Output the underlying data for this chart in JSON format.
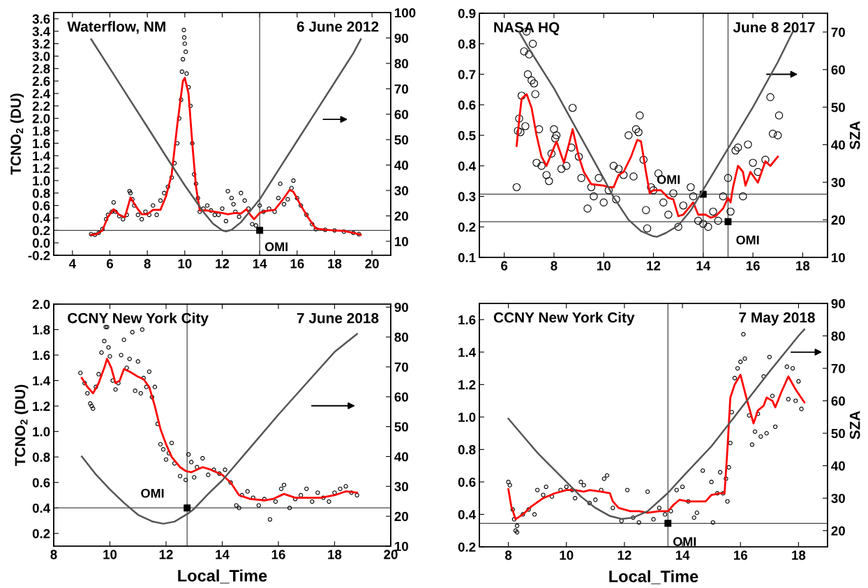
{
  "chart_data": [
    {
      "type": "scatter",
      "title": "Waterflow, NM",
      "subtitle": "6 June 2012",
      "ylabel": "TCNO$_{2}$ (DU)",
      "xlim": [
        3,
        21
      ],
      "xticks": [
        4,
        6,
        8,
        10,
        12,
        14,
        16,
        18,
        20
      ],
      "ylim": [
        -0.2,
        3.7
      ],
      "yticks": [
        -0.2,
        {
          "value": 0,
          "label": "0.0"
        },
        0.2,
        0.4,
        0.6,
        0.8,
        {
          "value": 1,
          "label": "1.0"
        },
        1.2,
        1.4,
        1.6,
        1.8,
        {
          "value": 2,
          "label": "2.0"
        },
        2.2,
        2.4,
        2.6,
        2.8,
        {
          "value": 3,
          "label": "3.0"
        },
        3.2,
        3.4,
        3.6
      ],
      "y2lim": [
        4.5,
        100
      ],
      "y2ticks": [
        10,
        20,
        30,
        40,
        50,
        60,
        70,
        80,
        90,
        100
      ],
      "series": [
        {
          "marker": "circle",
          "color": "#000000",
          "x": [
            5.0,
            5.2,
            5.4,
            5.6,
            5.8,
            5.9,
            6.1,
            6.2,
            6.3,
            6.5,
            6.7,
            6.9,
            7.05,
            7.1,
            7.2,
            7.3,
            7.5,
            7.7,
            7.9,
            8.1,
            8.3,
            8.5,
            8.7,
            8.9,
            9.1,
            9.3,
            9.45,
            9.6,
            9.7,
            9.8,
            9.85,
            9.9,
            9.95,
            9.97,
            10.0,
            10.05,
            10.1,
            10.2,
            10.3,
            10.4,
            10.5,
            10.6,
            10.7,
            10.8,
            11.0,
            11.2,
            11.4,
            11.6,
            11.8,
            12.0,
            12.2,
            12.3,
            12.5,
            12.6,
            12.7,
            12.9,
            13.0,
            13.2,
            13.4,
            13.6,
            13.8,
            14.0,
            14.2,
            14.5,
            14.8,
            15.0,
            15.1,
            15.3,
            15.5,
            15.7,
            15.8,
            16.0,
            16.2,
            16.5,
            16.8,
            17.0,
            17.5,
            18.0,
            18.5,
            19.0,
            19.3
          ],
          "values": [
            0.14,
            0.13,
            0.16,
            0.22,
            0.38,
            0.45,
            0.5,
            0.65,
            0.5,
            0.43,
            0.38,
            0.45,
            0.83,
            0.8,
            0.7,
            0.6,
            0.45,
            0.38,
            0.5,
            0.45,
            0.6,
            0.45,
            0.68,
            0.8,
            0.9,
            1.05,
            1.28,
            1.6,
            2.0,
            2.3,
            2.75,
            2.95,
            3.42,
            3.3,
            3.2,
            3.07,
            2.72,
            2.5,
            2.2,
            1.6,
            1.1,
            0.95,
            0.72,
            0.5,
            0.55,
            0.6,
            0.52,
            0.45,
            0.45,
            0.55,
            0.35,
            0.83,
            0.72,
            0.62,
            0.5,
            0.42,
            0.8,
            0.68,
            0.55,
            0.3,
            0.28,
            0.6,
            0.5,
            0.55,
            0.5,
            0.72,
            0.95,
            0.62,
            0.7,
            0.88,
            1.0,
            0.72,
            0.6,
            0.45,
            0.3,
            0.22,
            0.21,
            0.2,
            0.18,
            0.16,
            0.14
          ]
        },
        {
          "type": "line",
          "color": "#ff0000",
          "x": [
            5,
            5.3,
            5.6,
            5.9,
            6.2,
            6.5,
            6.8,
            7.1,
            7.4,
            7.7,
            8,
            8.3,
            8.7,
            9,
            9.3,
            9.6,
            9.9,
            10.0,
            10.2,
            10.4,
            10.6,
            10.8,
            11.2,
            11.6,
            12,
            12.3,
            12.7,
            13,
            13.3,
            13.5,
            13.7,
            14,
            14.3,
            14.8,
            15.2,
            15.6,
            15.8,
            16.2,
            16.6,
            17,
            17.5,
            18,
            18.5,
            19,
            19.4
          ],
          "values": [
            0.13,
            0.14,
            0.2,
            0.42,
            0.54,
            0.45,
            0.41,
            0.73,
            0.58,
            0.46,
            0.46,
            0.53,
            0.53,
            0.75,
            1.1,
            1.9,
            2.6,
            2.65,
            2.4,
            1.6,
            0.9,
            0.52,
            0.52,
            0.5,
            0.48,
            0.46,
            0.48,
            0.47,
            0.54,
            0.45,
            0.38,
            0.48,
            0.51,
            0.53,
            0.68,
            0.85,
            0.82,
            0.6,
            0.4,
            0.23,
            0.21,
            0.2,
            0.19,
            0.16,
            0.13
          ]
        },
        {
          "type": "line",
          "axis": "y2",
          "color": "#555555",
          "x": [
            5,
            6,
            7,
            8,
            9,
            10,
            11,
            11.5,
            12,
            12.2,
            12.5,
            13,
            13.5,
            14,
            15,
            16,
            17,
            18,
            19,
            19.4
          ],
          "values": [
            89.5,
            78,
            66.5,
            55,
            43.4,
            32,
            21.5,
            17,
            14.3,
            13.9,
            14.5,
            17.5,
            22,
            26.5,
            38,
            49.5,
            61,
            72.5,
            84,
            89.5
          ]
        },
        {
          "marker": "square",
          "color": "#000000",
          "x": [
            14
          ],
          "values": [
            0.2
          ]
        }
      ],
      "ref_lines": [
        {
          "axis": "y",
          "value": 0.2,
          "color": "#444444"
        },
        {
          "axis": "x",
          "value": 14,
          "color": "#444444"
        }
      ],
      "annotations": [
        {
          "text": "OMI",
          "x": 14,
          "y": 0.2
        }
      ]
    },
    {
      "type": "scatter",
      "title": "NASA HQ",
      "subtitle": "June 8 2017",
      "y2label": "SZA",
      "xlim": [
        5,
        19
      ],
      "xticks": [
        6,
        8,
        10,
        12,
        14,
        16,
        18
      ],
      "ylim": [
        0.1,
        0.9
      ],
      "yticks": [
        0.1,
        0.2,
        0.3,
        0.4,
        0.5,
        0.6,
        0.7,
        0.8,
        0.9
      ],
      "y2lim": [
        10,
        75
      ],
      "y2ticks": [
        10,
        20,
        30,
        40,
        50,
        60,
        70
      ],
      "series": [
        {
          "marker": "circle",
          "color": "#000000",
          "x": [
            6.5,
            6.55,
            6.6,
            6.65,
            6.7,
            6.8,
            6.85,
            6.9,
            6.95,
            7.0,
            7.1,
            7.15,
            7.2,
            7.25,
            7.3,
            7.4,
            7.5,
            7.7,
            7.8,
            7.9,
            8.0,
            8.05,
            8.1,
            8.3,
            8.5,
            8.7,
            8.75,
            9.0,
            9.1,
            9.35,
            9.5,
            9.6,
            9.8,
            10.0,
            10.2,
            10.4,
            10.5,
            10.6,
            10.8,
            11.0,
            11.2,
            11.3,
            11.4,
            11.45,
            11.6,
            11.7,
            11.75,
            11.9,
            12.0,
            12.2,
            12.4,
            12.6,
            12.8,
            13.0,
            13.2,
            13.5,
            13.6,
            13.8,
            14.0,
            14.2,
            14.4,
            14.6,
            14.8,
            15.0,
            15.1,
            15.3,
            15.4,
            15.6,
            15.8,
            16.0,
            16.2,
            16.5,
            16.7,
            16.8,
            17.0,
            17.05
          ],
          "values": [
            0.33,
            0.515,
            0.555,
            0.51,
            0.63,
            0.775,
            0.53,
            0.84,
            0.7,
            0.765,
            0.68,
            0.8,
            0.67,
            0.635,
            0.41,
            0.52,
            0.4,
            0.37,
            0.35,
            0.44,
            0.52,
            0.49,
            0.5,
            0.39,
            0.4,
            0.46,
            0.59,
            0.43,
            0.36,
            0.26,
            0.33,
            0.3,
            0.36,
            0.28,
            0.32,
            0.4,
            0.29,
            0.39,
            0.37,
            0.5,
            0.365,
            0.52,
            0.51,
            0.565,
            0.42,
            0.255,
            0.195,
            0.33,
            0.32,
            0.375,
            0.28,
            0.24,
            0.31,
            0.2,
            0.27,
            0.33,
            0.3,
            0.22,
            0.21,
            0.2,
            0.25,
            0.22,
            0.3,
            0.36,
            0.25,
            0.45,
            0.46,
            0.3,
            0.47,
            0.41,
            0.38,
            0.42,
            0.625,
            0.505,
            0.5,
            0.565
          ]
        },
        {
          "type": "line",
          "color": "#ff0000",
          "x": [
            6.5,
            6.6,
            6.7,
            6.9,
            7.1,
            7.3,
            7.5,
            7.7,
            7.9,
            8.1,
            8.4,
            8.6,
            8.75,
            9,
            9.2,
            9.5,
            10,
            10.2,
            10.4,
            10.6,
            10.8,
            11.1,
            11.35,
            11.5,
            11.7,
            11.85,
            12,
            12.3,
            12.6,
            12.8,
            13,
            13.2,
            13.5,
            13.6,
            13.8,
            14.1,
            14.3,
            14.5,
            14.8,
            15,
            15.1,
            15.2,
            15.4,
            15.6,
            15.7,
            15.9,
            16.2,
            16.5,
            16.7,
            17
          ],
          "values": [
            0.465,
            0.55,
            0.62,
            0.635,
            0.59,
            0.5,
            0.43,
            0.4,
            0.44,
            0.48,
            0.41,
            0.47,
            0.52,
            0.43,
            0.38,
            0.34,
            0.335,
            0.33,
            0.33,
            0.37,
            0.38,
            0.43,
            0.485,
            0.48,
            0.38,
            0.31,
            0.32,
            0.32,
            0.295,
            0.29,
            0.235,
            0.24,
            0.27,
            0.28,
            0.24,
            0.24,
            0.23,
            0.235,
            0.26,
            0.295,
            0.28,
            0.33,
            0.4,
            0.38,
            0.335,
            0.38,
            0.345,
            0.415,
            0.4,
            0.43
          ]
        },
        {
          "type": "line",
          "axis": "y2",
          "color": "#555555",
          "x": [
            6.6,
            7,
            8,
            9,
            10,
            10.4,
            11,
            11.5,
            12,
            12.15,
            12.5,
            13,
            13.5,
            14,
            15,
            16,
            17,
            17.6
          ],
          "values": [
            70,
            65.5,
            55,
            43,
            31,
            26,
            20,
            17,
            15.6,
            15.5,
            16.5,
            18.5,
            22.5,
            28,
            39,
            50,
            62,
            70
          ]
        },
        {
          "marker": "square",
          "color": "#000000",
          "x": [
            14,
            15
          ],
          "values": [
            0.307,
            0.217
          ]
        }
      ],
      "ref_lines": [
        {
          "axis": "y",
          "value": 0.307,
          "color": "#444444"
        },
        {
          "axis": "y",
          "value": 0.217,
          "color": "#444444"
        },
        {
          "axis": "x",
          "value": 14,
          "color": "#444444"
        },
        {
          "axis": "x",
          "value": 15,
          "color": "#444444"
        }
      ],
      "annotations": [
        {
          "text": "OMI",
          "x": 14,
          "y": 0.307
        },
        {
          "text": "OMI",
          "x": 15,
          "y": 0.217
        }
      ]
    },
    {
      "type": "scatter",
      "title": "CCNY New York City",
      "subtitle": "7 June 2018",
      "xlabel": "Local_Time",
      "ylabel": "TCNO$_{2}$ (DU)",
      "xlim": [
        8,
        20
      ],
      "xticks": [
        8,
        10,
        12,
        14,
        16,
        18,
        20
      ],
      "ylim": [
        0.1,
        2.0
      ],
      "yticks": [
        0.2,
        0.4,
        0.6,
        0.8,
        {
          "value": 1,
          "label": "1.0"
        },
        1.2,
        1.4,
        1.6,
        1.8,
        {
          "value": 2,
          "label": "2.0"
        }
      ],
      "y2lim": [
        10,
        91
      ],
      "y2ticks": [
        10,
        20,
        30,
        40,
        50,
        60,
        70,
        80,
        90
      ],
      "series": [
        {
          "marker": "circle",
          "color": "#000000",
          "x": [
            8.95,
            9.1,
            9.2,
            9.3,
            9.35,
            9.4,
            9.5,
            9.6,
            9.7,
            9.8,
            9.85,
            9.9,
            9.95,
            10.0,
            10.1,
            10.2,
            10.3,
            10.4,
            10.5,
            10.6,
            10.7,
            10.8,
            10.9,
            11.0,
            11.1,
            11.15,
            11.2,
            11.3,
            11.4,
            11.5,
            11.6,
            11.7,
            11.8,
            11.9,
            12.0,
            12.1,
            12.2,
            12.3,
            12.5,
            12.7,
            12.8,
            12.9,
            13.0,
            13.1,
            13.3,
            13.5,
            13.7,
            13.9,
            14.1,
            14.3,
            14.5,
            14.6,
            14.7,
            14.9,
            15.1,
            15.3,
            15.5,
            15.7,
            15.9,
            16.1,
            16.2,
            16.4,
            16.6,
            16.8,
            17.0,
            17.2,
            17.4,
            17.6,
            17.8,
            18.0,
            18.2,
            18.4,
            18.6,
            18.8
          ],
          "values": [
            1.46,
            1.38,
            1.3,
            1.22,
            1.2,
            1.18,
            1.35,
            1.45,
            1.62,
            1.71,
            1.82,
            1.82,
            1.66,
            1.59,
            1.4,
            1.33,
            1.38,
            1.6,
            1.72,
            1.5,
            1.57,
            1.78,
            1.32,
            1.55,
            1.3,
            1.8,
            1.42,
            1.35,
            1.47,
            1.27,
            1.35,
            1.06,
            0.9,
            0.86,
            0.78,
            0.83,
            0.91,
            0.75,
            0.65,
            0.62,
            0.82,
            0.76,
            0.64,
            0.72,
            0.79,
            0.66,
            0.7,
            0.67,
            0.7,
            0.6,
            0.42,
            0.4,
            0.5,
            0.53,
            0.48,
            0.42,
            0.47,
            0.31,
            0.45,
            0.55,
            0.58,
            0.4,
            0.47,
            0.5,
            0.55,
            0.45,
            0.52,
            0.48,
            0.45,
            0.52,
            0.55,
            0.57,
            0.52,
            0.5
          ]
        },
        {
          "type": "line",
          "color": "#ff0000",
          "x": [
            9,
            9.2,
            9.4,
            9.6,
            9.8,
            9.9,
            10.05,
            10.2,
            10.35,
            10.5,
            10.7,
            11,
            11.2,
            11.4,
            11.6,
            11.8,
            12,
            12.2,
            12.5,
            12.7,
            12.9,
            13.3,
            13.6,
            14,
            14.3,
            14.6,
            15,
            15.5,
            15.8,
            16.2,
            16.6,
            17,
            17.5,
            18,
            18.4,
            18.8
          ],
          "values": [
            1.42,
            1.35,
            1.3,
            1.38,
            1.5,
            1.57,
            1.5,
            1.38,
            1.4,
            1.49,
            1.47,
            1.43,
            1.41,
            1.35,
            1.2,
            1.02,
            0.9,
            0.8,
            0.72,
            0.69,
            0.68,
            0.72,
            0.7,
            0.66,
            0.6,
            0.5,
            0.47,
            0.46,
            0.47,
            0.51,
            0.48,
            0.48,
            0.48,
            0.5,
            0.53,
            0.52
          ]
        },
        {
          "type": "line",
          "axis": "y2",
          "color": "#555555",
          "x": [
            9,
            9.5,
            10,
            10.5,
            11,
            11.5,
            11.9,
            12.3,
            12.8,
            13,
            13.5,
            14,
            15,
            16,
            17,
            18,
            18.8
          ],
          "values": [
            40,
            34,
            29,
            24.5,
            20.5,
            18.3,
            17.5,
            18.2,
            21,
            22.5,
            27.5,
            32,
            43,
            54,
            64.5,
            75,
            81
          ]
        },
        {
          "marker": "square",
          "color": "#000000",
          "x": [
            12.75
          ],
          "values": [
            0.4
          ]
        }
      ],
      "ref_lines": [
        {
          "axis": "y",
          "value": 0.4,
          "color": "#444444"
        },
        {
          "axis": "x",
          "value": 12.75,
          "color": "#444444"
        }
      ],
      "annotations": [
        {
          "text": "OMI",
          "x": 12.75,
          "y": 0.4
        }
      ]
    },
    {
      "type": "scatter",
      "title": "CCNY New York City",
      "subtitle": "7 May 2018",
      "xlabel": "Local_Time",
      "y2label": "SZA",
      "xlim": [
        7,
        19
      ],
      "xticks": [
        8,
        10,
        12,
        14,
        16,
        18
      ],
      "ylim": [
        0.2,
        1.7
      ],
      "yticks": [
        0.2,
        0.4,
        0.6,
        0.8,
        {
          "value": 1,
          "label": "1.0"
        },
        1.2,
        1.4,
        1.6
      ],
      "y2lim": [
        15,
        90
      ],
      "y2ticks": [
        20,
        30,
        40,
        50,
        60,
        70,
        80,
        90
      ],
      "series": [
        {
          "marker": "circle",
          "color": "#000000",
          "x": [
            8.0,
            8.05,
            8.15,
            8.2,
            8.25,
            8.3,
            8.3,
            8.5,
            8.7,
            8.9,
            9.0,
            9.2,
            9.3,
            9.5,
            9.8,
            10.0,
            10.2,
            10.3,
            10.5,
            10.6,
            10.8,
            11.0,
            11.2,
            11.3,
            11.4,
            11.6,
            11.9,
            12.1,
            12.3,
            12.5,
            12.8,
            13.0,
            13.2,
            13.4,
            13.6,
            13.8,
            14.0,
            14.2,
            14.4,
            14.5,
            14.7,
            15.0,
            15.05,
            15.2,
            15.3,
            15.4,
            15.5,
            15.55,
            15.6,
            15.65,
            15.7,
            15.8,
            15.9,
            16.0,
            16.1,
            16.15,
            16.3,
            16.4,
            16.5,
            16.6,
            16.7,
            16.8,
            16.9,
            17.0,
            17.1,
            17.2,
            17.6,
            17.65,
            17.8,
            17.9,
            18.0,
            18.1
          ],
          "values": [
            0.6,
            0.58,
            0.43,
            0.37,
            0.3,
            0.33,
            0.29,
            0.4,
            0.43,
            0.4,
            0.55,
            0.52,
            0.57,
            0.51,
            0.55,
            0.57,
            0.55,
            0.5,
            0.6,
            0.58,
            0.47,
            0.49,
            0.55,
            0.62,
            0.64,
            0.44,
            0.36,
            0.55,
            0.38,
            0.35,
            0.54,
            0.37,
            0.44,
            0.4,
            0.42,
            0.55,
            0.57,
            0.48,
            0.38,
            0.41,
            0.67,
            0.6,
            0.35,
            0.53,
            0.66,
            0.53,
            0.62,
            0.48,
            0.69,
            0.84,
            1.03,
            1.24,
            1.3,
            1.34,
            1.51,
            1.36,
            1.01,
            0.83,
            0.91,
            1.02,
            0.88,
            1.25,
            0.9,
            1.37,
            1.13,
            0.94,
            1.31,
            1.11,
            1.3,
            1.1,
            1.22,
            1.05
          ]
        },
        {
          "type": "line",
          "color": "#ff0000",
          "x": [
            8,
            8.1,
            8.25,
            8.5,
            8.8,
            9.2,
            9.6,
            10,
            10.3,
            10.6,
            10.8,
            11.2,
            11.5,
            11.6,
            11.8,
            12.2,
            12.5,
            12.8,
            13.2,
            13.5,
            13.7,
            13.9,
            14.2,
            14.8,
            15.0,
            15.3,
            15.45,
            15.55,
            15.65,
            15.8,
            16,
            16.2,
            16.45,
            16.6,
            16.8,
            16.9,
            17.1,
            17.2,
            17.4,
            17.65,
            17.9,
            18.2
          ],
          "values": [
            0.555,
            0.45,
            0.37,
            0.4,
            0.45,
            0.5,
            0.53,
            0.55,
            0.55,
            0.54,
            0.55,
            0.54,
            0.53,
            0.48,
            0.44,
            0.42,
            0.42,
            0.41,
            0.42,
            0.42,
            0.46,
            0.49,
            0.48,
            0.48,
            0.52,
            0.53,
            0.53,
            0.8,
            1.12,
            1.2,
            1.26,
            1.12,
            0.96,
            1.04,
            1.07,
            1.12,
            1.1,
            1.06,
            1.15,
            1.25,
            1.17,
            1.09
          ]
        },
        {
          "type": "line",
          "axis": "y2",
          "color": "#555555",
          "x": [
            8,
            9,
            10,
            10.5,
            11,
            11.5,
            11.9,
            12.3,
            12.8,
            13.5,
            14,
            15,
            15.7,
            16,
            17,
            18,
            18.2
          ],
          "values": [
            54.5,
            44,
            35,
            30.5,
            27,
            24.5,
            23.6,
            24,
            26,
            31.6,
            36.5,
            46,
            54,
            57.5,
            69,
            80,
            82
          ]
        },
        {
          "marker": "square",
          "color": "#000000",
          "x": [
            13.5
          ],
          "values": [
            0.345
          ]
        }
      ],
      "ref_lines": [
        {
          "axis": "y",
          "value": 0.345,
          "color": "#444444"
        },
        {
          "axis": "x",
          "value": 13.5,
          "color": "#444444"
        }
      ],
      "annotations": [
        {
          "text": "OMI",
          "x": 13.5,
          "y": 0.345
        }
      ]
    }
  ]
}
